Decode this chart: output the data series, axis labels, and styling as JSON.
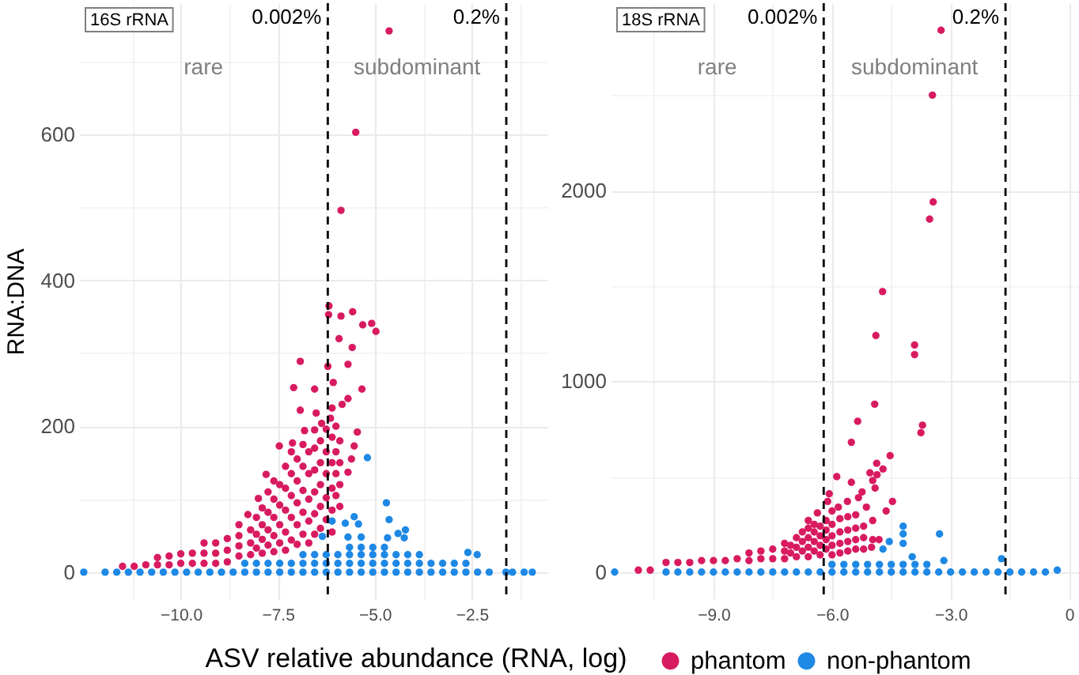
{
  "chart_data": [
    {
      "type": "scatter",
      "title": "16S rRNA",
      "ylabel": "RNA:DNA",
      "xlabel": "ASV relative abundance (RNA, log)",
      "legend": "bottom",
      "marker": "circle",
      "grid": true,
      "xlim": [
        -12.62,
        -0.55
      ],
      "ylim": [
        -37,
        780
      ],
      "xticks": [
        {
          "value": -11.25,
          "label": null
        },
        {
          "value": -10,
          "label": "−10.0"
        },
        {
          "value": -8.75,
          "label": null
        },
        {
          "value": -7.5,
          "label": "−7.5"
        },
        {
          "value": -6.25,
          "label": null
        },
        {
          "value": -5,
          "label": "−5.0"
        },
        {
          "value": -3.75,
          "label": null
        },
        {
          "value": -2.5,
          "label": "−2.5"
        },
        {
          "value": -1.25,
          "label": null
        }
      ],
      "yticks": [
        0,
        {
          "value": 100,
          "label": null
        },
        200,
        {
          "value": 300,
          "label": null
        },
        400,
        {
          "value": 500,
          "label": null
        },
        600,
        {
          "value": 700,
          "label": null
        }
      ],
      "ref_lines": [
        {
          "axis": "x",
          "value": -6.21,
          "line_style": "dashed",
          "color": "#000000"
        },
        {
          "axis": "x",
          "value": -1.61,
          "line_style": "dashed",
          "color": "#000000"
        }
      ],
      "annotations": [
        "rare",
        "subdominant",
        "0.002%",
        "0.2%"
      ],
      "series": [
        {
          "name": "phantom",
          "color": "#d81b60",
          "x": [
            -11.5,
            -11.2,
            -10.9,
            -10.6,
            -10.6,
            -10.3,
            -10.3,
            -10.0,
            -10.0,
            -9.7,
            -9.7,
            -9.4,
            -9.4,
            -9.4,
            -9.1,
            -9.1,
            -9.1,
            -8.8,
            -8.8,
            -8.8,
            -8.5,
            -8.5,
            -8.5,
            -8.5,
            -8.2,
            -8.2,
            -8.2,
            -7.9,
            -7.9,
            -7.9,
            -7.9,
            -7.6,
            -7.6,
            -7.6,
            -7.6,
            -7.6,
            -7.3,
            -7.3,
            -7.3,
            -7.3,
            -7.3,
            -7.0,
            -7.0,
            -7.0,
            -7.0,
            -7.0,
            -6.7,
            -6.7,
            -6.7,
            -6.7,
            -6.7,
            -6.4,
            -6.4,
            -6.4,
            -6.4,
            -6.4,
            -6.1,
            -6.1,
            -6.1,
            -6.1,
            -6.1,
            -6.1,
            -5.9,
            -5.9,
            -5.9,
            -5.9,
            -8.05,
            -8.05,
            -8.05,
            -7.75,
            -7.75,
            -7.75,
            -7.75,
            -7.45,
            -7.45,
            -7.45,
            -7.45,
            -7.15,
            -7.15,
            -7.15,
            -7.15,
            -7.15,
            -6.85,
            -6.85,
            -6.85,
            -6.85,
            -6.85,
            -6.55,
            -6.55,
            -6.55,
            -6.55,
            -6.55,
            -6.55,
            -6.25,
            -6.25,
            -6.25,
            -6.25,
            -6.25,
            -6.0,
            -6.0,
            -6.0,
            -6.0,
            -4.63,
            -5.49,
            -5.87,
            -6.18,
            -6.19,
            -5.87,
            -5.57,
            -5.31,
            -5.08,
            -4.97,
            -5.92,
            -5.58,
            -6.92,
            -6.21,
            -5.69,
            -7.09,
            -6.55,
            -6.07,
            -5.33,
            -5.69,
            -5.84,
            -6.92,
            -6.51,
            -6.14,
            -6.37,
            -6.81,
            -5.45,
            -7.46,
            -7.12,
            -5.53,
            -5.6,
            -5.69,
            -7.8,
            -8.0,
            -8.27
          ],
          "values": [
            8,
            8,
            10,
            10,
            20,
            10,
            22,
            12,
            25,
            12,
            26,
            12,
            26,
            40,
            12,
            26,
            40,
            14,
            30,
            46,
            22,
            36,
            50,
            65,
            24,
            40,
            58,
            26,
            45,
            65,
            88,
            28,
            50,
            75,
            100,
            125,
            30,
            55,
            85,
            115,
            145,
            38,
            65,
            95,
            125,
            155,
            40,
            70,
            100,
            135,
            165,
            60,
            90,
            120,
            150,
            180,
            55,
            85,
            115,
            150,
            185,
            225,
            90,
            120,
            150,
            180,
            33,
            52,
            75,
            37,
            58,
            82,
            110,
            40,
            65,
            92,
            120,
            44,
            75,
            105,
            135,
            165,
            52,
            82,
            112,
            145,
            175,
            52,
            80,
            110,
            140,
            170,
            195,
            72,
            102,
            135,
            165,
            196,
            105,
            135,
            165,
            200,
            742,
            603,
            496,
            365,
            353,
            351,
            357,
            339,
            341,
            330,
            320,
            308,
            289,
            282,
            285,
            253,
            251,
            260,
            251,
            238,
            230,
            222,
            218,
            211,
            204,
            194,
            192,
            173,
            177,
            173,
            155,
            137,
            134,
            101,
            79
          ]
        },
        {
          "name": "non-phantom",
          "color": "#1e88e5",
          "x": [
            -12.5,
            -11.95,
            -11.65,
            -11.35,
            -11.05,
            -10.75,
            -10.45,
            -10.15,
            -9.85,
            -9.55,
            -9.25,
            -8.95,
            -8.65,
            -8.35,
            -8.35,
            -8.05,
            -8.05,
            -7.75,
            -7.75,
            -7.45,
            -7.45,
            -7.15,
            -7.15,
            -6.85,
            -6.85,
            -6.85,
            -6.55,
            -6.55,
            -6.55,
            -6.25,
            -6.25,
            -6.25,
            -5.95,
            -5.95,
            -5.95,
            -5.65,
            -5.65,
            -5.65,
            -5.65,
            -5.35,
            -5.35,
            -5.35,
            -5.35,
            -5.05,
            -5.05,
            -5.05,
            -5.05,
            -4.75,
            -4.75,
            -4.75,
            -4.75,
            -4.45,
            -4.45,
            -4.45,
            -4.15,
            -4.15,
            -4.15,
            -3.85,
            -3.85,
            -3.85,
            -3.55,
            -3.55,
            -3.25,
            -3.25,
            -2.95,
            -2.95,
            -2.65,
            -2.65,
            -2.35,
            -2.05,
            -1.45,
            -1.15,
            -5.19,
            -4.7,
            -4.63,
            -5.53,
            -5.42,
            -5.76,
            -6.1,
            -4.21,
            -4.4,
            -4.67,
            -4.24,
            -6.35,
            -5.69,
            -5.35,
            -2.6,
            -2.36,
            -1.62,
            -0.94
          ],
          "values": [
            0,
            0,
            0,
            0,
            0,
            0,
            0,
            0,
            0,
            0,
            0,
            0,
            0,
            0,
            12,
            0,
            12,
            0,
            12,
            0,
            12,
            0,
            12,
            0,
            12,
            24,
            0,
            12,
            24,
            0,
            12,
            24,
            0,
            12,
            24,
            0,
            12,
            24,
            34,
            0,
            12,
            24,
            34,
            0,
            12,
            24,
            34,
            0,
            12,
            24,
            34,
            0,
            12,
            24,
            0,
            12,
            24,
            0,
            12,
            24,
            0,
            12,
            0,
            12,
            0,
            12,
            0,
            12,
            0,
            0,
            0,
            0,
            157,
            95,
            72,
            76,
            66,
            67,
            70,
            58,
            53,
            47,
            47,
            49,
            48,
            48,
            27,
            24,
            0,
            0
          ]
        }
      ]
    },
    {
      "type": "scatter",
      "title": "18S rRNA",
      "marker": "circle",
      "grid": true,
      "xlim": [
        -11.6,
        0.25
      ],
      "ylim": [
        -142,
        2982
      ],
      "xticks": [
        {
          "value": -10.5,
          "label": null
        },
        {
          "value": -9,
          "label": "−9.0"
        },
        {
          "value": -7.5,
          "label": null
        },
        {
          "value": -6,
          "label": "−6.0"
        },
        {
          "value": -4.5,
          "label": null
        },
        {
          "value": -3,
          "label": "−3.0"
        },
        {
          "value": -1.5,
          "label": null
        },
        0
      ],
      "yticks": [
        0,
        {
          "value": 500,
          "label": null
        },
        1000,
        {
          "value": 1500,
          "label": null
        },
        2000,
        {
          "value": 2500,
          "label": null
        }
      ],
      "ref_lines": [
        {
          "axis": "x",
          "value": -6.21,
          "line_style": "dashed",
          "color": "#000000"
        },
        {
          "axis": "x",
          "value": -1.61,
          "line_style": "dashed",
          "color": "#000000"
        }
      ],
      "annotations": [
        "rare",
        "subdominant",
        "0.002%",
        "0.2%"
      ],
      "series": [
        {
          "name": "phantom",
          "color": "#d81b60",
          "x": [
            -10.9,
            -10.6,
            -10.2,
            -9.9,
            -9.6,
            -9.3,
            -9.0,
            -8.7,
            -8.4,
            -8.1,
            -8.1,
            -7.8,
            -7.8,
            -7.5,
            -7.5,
            -7.2,
            -7.2,
            -7.2,
            -6.9,
            -6.9,
            -6.9,
            -6.6,
            -6.6,
            -6.6,
            -6.6,
            -6.6,
            -6.3,
            -6.3,
            -6.3,
            -6.3,
            -6.0,
            -6.0,
            -6.0,
            -6.0,
            -6.0,
            -5.8,
            -5.8,
            -5.8,
            -5.8,
            -5.6,
            -5.6,
            -5.6,
            -5.6,
            -5.4,
            -5.4,
            -5.4,
            -5.4,
            -5.2,
            -5.2,
            -5.2,
            -5.0,
            -7.05,
            -7.05,
            -6.75,
            -6.75,
            -6.75,
            -6.45,
            -6.45,
            -6.45,
            -6.45,
            -6.15,
            -6.15,
            -6.15,
            -6.15,
            -3.24,
            -3.46,
            -3.44,
            -3.53,
            -4.72,
            -4.89,
            -3.91,
            -3.91,
            -4.92,
            -5.35,
            -3.71,
            -3.75,
            -5.51,
            -4.53,
            -4.87,
            -4.71,
            -5.04,
            -4.86,
            -5.88,
            -5.51,
            -4.97,
            -4.91,
            -5.24,
            -6.07,
            -6.11,
            -4.47,
            -5.33,
            -5.84,
            -5.13,
            -4.63,
            -6.37,
            -5.61,
            -4.97,
            -4.97,
            -4.81
          ],
          "values": [
            10,
            10,
            50,
            50,
            50,
            60,
            60,
            60,
            70,
            60,
            100,
            70,
            110,
            70,
            120,
            70,
            110,
            150,
            80,
            130,
            180,
            80,
            130,
            180,
            230,
            270,
            90,
            140,
            190,
            240,
            90,
            140,
            190,
            250,
            320,
            100,
            150,
            210,
            280,
            110,
            160,
            220,
            290,
            120,
            170,
            230,
            300,
            120,
            180,
            240,
            130,
            100,
            140,
            110,
            160,
            210,
            110,
            160,
            210,
            250,
            120,
            170,
            220,
            270,
            2840,
            2500,
            1940,
            1850,
            1470,
            1240,
            1190,
            1140,
            880,
            790,
            770,
            730,
            680,
            610,
            570,
            540,
            520,
            510,
            500,
            470,
            480,
            440,
            420,
            410,
            370,
            370,
            390,
            340,
            340,
            320,
            310,
            370,
            270,
            170,
            170
          ]
        },
        {
          "name": "non-phantom",
          "color": "#1e88e5",
          "x": [
            -11.5,
            -10.2,
            -9.9,
            -9.6,
            -9.3,
            -9.0,
            -8.7,
            -8.4,
            -8.1,
            -7.8,
            -7.5,
            -7.2,
            -6.9,
            -6.6,
            -6.3,
            -6.0,
            -6.0,
            -5.7,
            -5.7,
            -5.4,
            -5.4,
            -5.1,
            -5.1,
            -4.8,
            -4.8,
            -4.5,
            -4.5,
            -4.2,
            -4.2,
            -3.9,
            -3.9,
            -3.6,
            -3.6,
            -3.3,
            -3.0,
            -2.7,
            -2.4,
            -2.1,
            -1.8,
            -1.5,
            -1.2,
            -0.9,
            -0.6,
            -4.2,
            -4.2,
            -3.28,
            -4.55,
            -4.2,
            -4.71,
            -3.97,
            -3.17,
            -1.71,
            -0.3
          ],
          "values": [
            0,
            0,
            0,
            0,
            0,
            0,
            0,
            0,
            0,
            0,
            0,
            0,
            0,
            0,
            0,
            0,
            40,
            0,
            40,
            0,
            40,
            0,
            40,
            0,
            40,
            0,
            40,
            0,
            40,
            0,
            40,
            0,
            40,
            0,
            0,
            0,
            0,
            0,
            0,
            0,
            0,
            0,
            0,
            240,
            200,
            200,
            160,
            150,
            120,
            80,
            60,
            70,
            10
          ]
        }
      ]
    }
  ]
}
